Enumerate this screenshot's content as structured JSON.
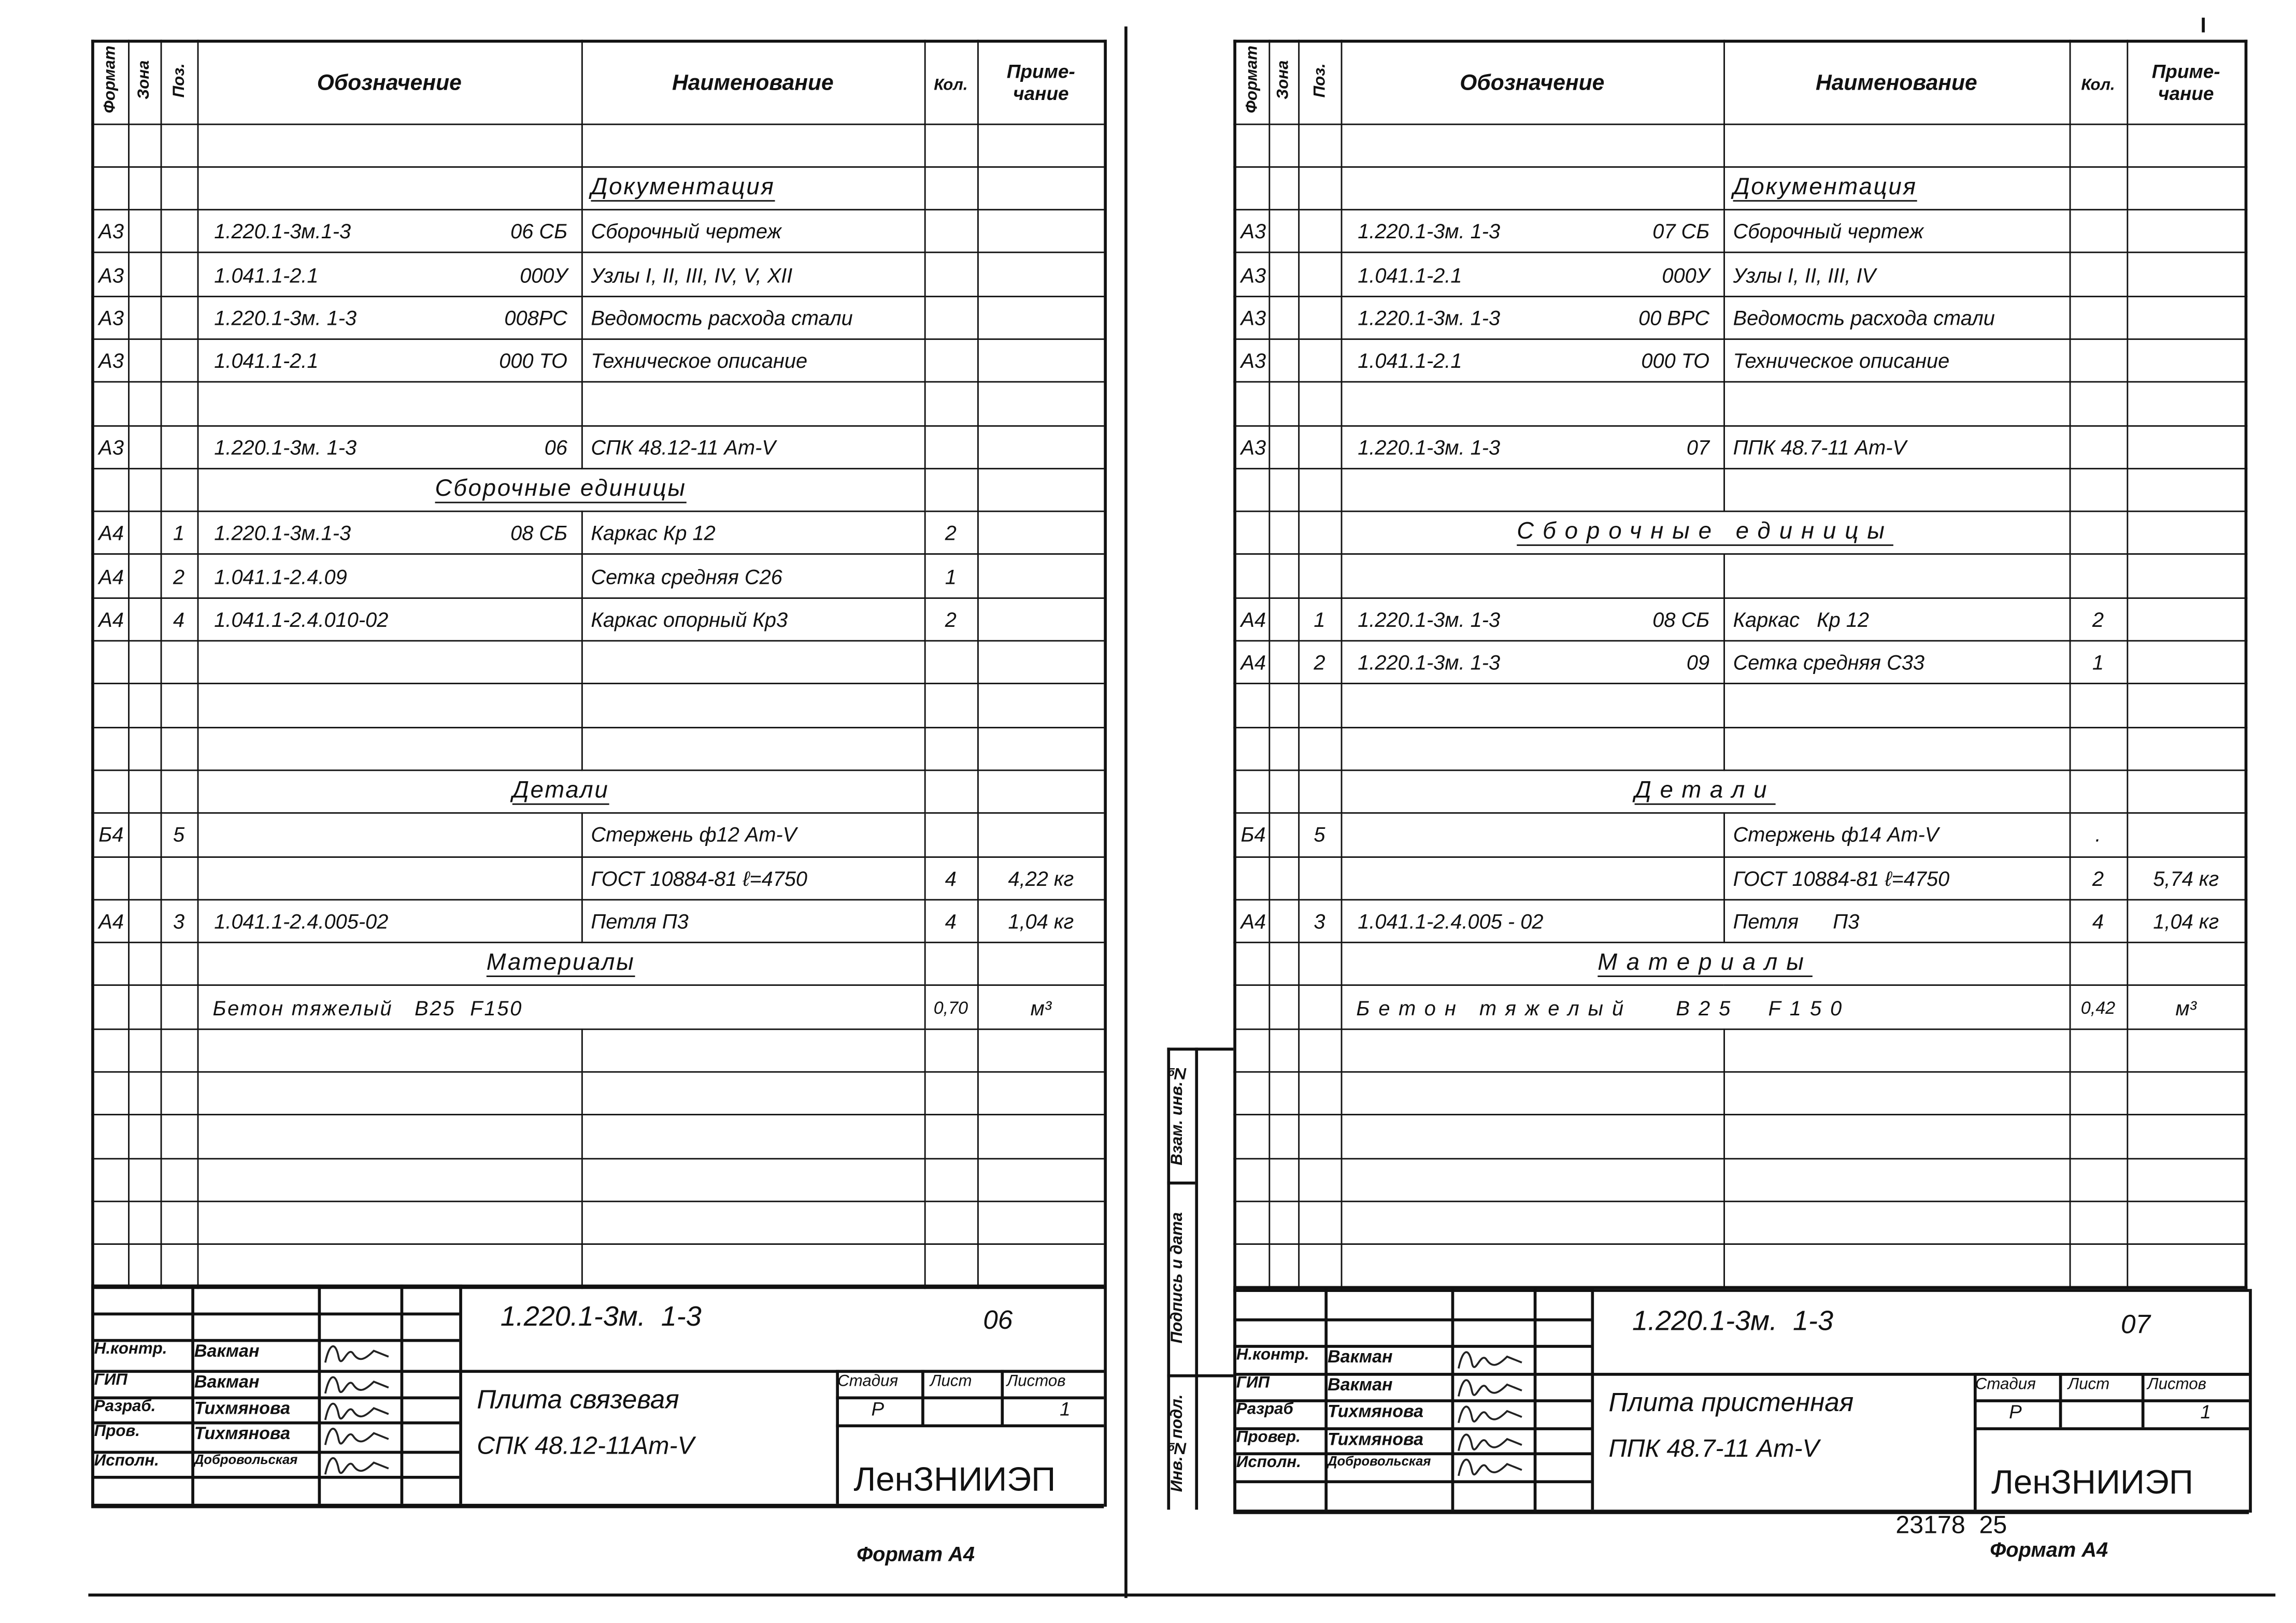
{
  "header": {
    "format": "Формат",
    "zone": "Зона",
    "pos": "Поз.",
    "designation": "Обозначение",
    "name": "Наименование",
    "qty": "Кол.",
    "note": "Приме-\nчание"
  },
  "sheets": [
    {
      "rows": [
        {
          "type": "empty"
        },
        {
          "type": "section_name",
          "name": "Документация"
        },
        {
          "type": "item",
          "format": "А3",
          "pos": "",
          "designation": "1.220.1-3м.1-3",
          "code": "06 СБ",
          "name": "Сборочный чертеж",
          "qty": "",
          "note": ""
        },
        {
          "type": "item",
          "format": "А3",
          "pos": "",
          "designation": "1.041.1-2.1",
          "code": "000У",
          "name": "Узлы I, II, III, IV, V, XII",
          "qty": "",
          "note": ""
        },
        {
          "type": "item",
          "format": "А3",
          "pos": "",
          "designation": "1.220.1-3м. 1-3",
          "code": "008РС",
          "name": "Ведомость расхода стали",
          "qty": "",
          "note": ""
        },
        {
          "type": "item",
          "format": "А3",
          "pos": "",
          "designation": "1.041.1-2.1",
          "code": "000 ТО",
          "name": "Техническое описание",
          "qty": "",
          "note": ""
        },
        {
          "type": "empty"
        },
        {
          "type": "item",
          "format": "А3",
          "pos": "",
          "designation": "1.220.1-3м. 1-3",
          "code": "06",
          "name": "СПК 48.12-11 Ат-V",
          "qty": "",
          "note": ""
        },
        {
          "type": "section",
          "name": "Сборочные единицы"
        },
        {
          "type": "item",
          "format": "А4",
          "pos": "1",
          "designation": "1.220.1-3м.1-3",
          "code": "08 СБ",
          "name": "Каркас Кр 12",
          "qty": "2",
          "note": ""
        },
        {
          "type": "item",
          "format": "А4",
          "pos": "2",
          "designation": "1.041.1-2.4.09",
          "code": "",
          "name": "Сетка средняя С26",
          "qty": "1",
          "note": ""
        },
        {
          "type": "item",
          "format": "А4",
          "pos": "4",
          "designation": "1.041.1-2.4.010-02",
          "code": "",
          "name": "Каркас опорный Кр3",
          "qty": "2",
          "note": ""
        },
        {
          "type": "empty"
        },
        {
          "type": "empty"
        },
        {
          "type": "empty"
        },
        {
          "type": "section",
          "name": "Детали"
        },
        {
          "type": "item",
          "format": "Б4",
          "pos": "5",
          "designation": "",
          "code": "",
          "name": "Стержень ф12 Ат-V",
          "qty": "",
          "note": ""
        },
        {
          "type": "item",
          "format": "",
          "pos": "",
          "designation": "",
          "code": "",
          "name": "ГОСТ 10884-81 ℓ=4750",
          "qty": "4",
          "note": "4,22 кг"
        },
        {
          "type": "item",
          "format": "А4",
          "pos": "3",
          "designation": "1.041.1-2.4.005-02",
          "code": "",
          "name": "Петля П3",
          "qty": "4",
          "note": "1,04 кг"
        },
        {
          "type": "section",
          "name": "Материалы"
        },
        {
          "type": "material",
          "name": "Бетон тяжелый   В25  F150",
          "qty": "0,70",
          "note": "м³"
        },
        {
          "type": "empty"
        },
        {
          "type": "empty"
        },
        {
          "type": "empty"
        },
        {
          "type": "empty"
        },
        {
          "type": "empty"
        },
        {
          "type": "empty"
        }
      ],
      "title_block": {
        "doc_number": "1.220.1-3м.  1-3",
        "doc_suffix": "06",
        "roles": [
          "Н.контр.",
          "ГИП",
          "Разраб.",
          "Пров.",
          "Исполн."
        ],
        "names": [
          "Вакман",
          "Вакман",
          "Тихмянова",
          "Тихмянова",
          "Добровольская"
        ],
        "title_line1": "Плита связевая",
        "title_line2": "СПК 48.12-11Ат-V",
        "stage_label": "Стадия",
        "sheet_label": "Лист",
        "sheets_label": "Листов",
        "stage": "Р",
        "sheet": "",
        "sheets_total": "1",
        "org": "ЛенЗНИИЭП"
      },
      "footer": "Формат А4"
    },
    {
      "rows": [
        {
          "type": "empty"
        },
        {
          "type": "section_name",
          "name": "Документация"
        },
        {
          "type": "item",
          "format": "А3",
          "pos": "",
          "designation": "1.220.1-3м. 1-3",
          "code": "07 СБ",
          "name": "Сборочный чертеж",
          "qty": "",
          "note": ""
        },
        {
          "type": "item",
          "format": "А3",
          "pos": "",
          "designation": "1.041.1-2.1",
          "code": "000У",
          "name": "Узлы I, II, III, IV",
          "qty": "",
          "note": ""
        },
        {
          "type": "item",
          "format": "А3",
          "pos": "",
          "designation": "1.220.1-3м. 1-3",
          "code": "00 ВРС",
          "name": "Ведомость расхода стали",
          "qty": "",
          "note": ""
        },
        {
          "type": "item",
          "format": "А3",
          "pos": "",
          "designation": "1.041.1-2.1",
          "code": "000 ТО",
          "name": "Техническое описание",
          "qty": "",
          "note": ""
        },
        {
          "type": "empty"
        },
        {
          "type": "item",
          "format": "А3",
          "pos": "",
          "designation": "1.220.1-3м. 1-3",
          "code": "07",
          "name": "ППК 48.7-11 Ат-V",
          "qty": "",
          "note": ""
        },
        {
          "type": "empty"
        },
        {
          "type": "section",
          "name": "Сборочные единицы",
          "wide": true
        },
        {
          "type": "empty"
        },
        {
          "type": "item",
          "format": "А4",
          "pos": "1",
          "designation": "1.220.1-3м. 1-3",
          "code": "08 СБ",
          "name": "Каркас   Кр 12",
          "qty": "2",
          "note": ""
        },
        {
          "type": "item",
          "format": "А4",
          "pos": "2",
          "designation": "1.220.1-3м. 1-3",
          "code": "09",
          "name": "Сетка средняя С33",
          "qty": "1",
          "note": ""
        },
        {
          "type": "empty"
        },
        {
          "type": "empty"
        },
        {
          "type": "section",
          "name": "Детали",
          "wide": true
        },
        {
          "type": "item",
          "format": "Б4",
          "pos": "5",
          "designation": "",
          "code": "",
          "name": "Стержень ф14 Ат-V",
          "qty": ".",
          "note": ""
        },
        {
          "type": "item",
          "format": "",
          "pos": "",
          "designation": "",
          "code": "",
          "name": "ГОСТ 10884-81 ℓ=4750",
          "qty": "2",
          "note": "5,74 кг"
        },
        {
          "type": "item",
          "format": "А4",
          "pos": "3",
          "designation": "1.041.1-2.4.005 - 02",
          "code": "",
          "name": "Петля      П3",
          "qty": "4",
          "note": "1,04 кг"
        },
        {
          "type": "section",
          "name": "Материалы",
          "wide": true
        },
        {
          "type": "material",
          "name": "Бетон тяжелый   В25  F150",
          "qty": "0,42",
          "note": "м³",
          "wide": true
        },
        {
          "type": "empty"
        },
        {
          "type": "empty"
        },
        {
          "type": "empty"
        },
        {
          "type": "empty"
        },
        {
          "type": "empty"
        },
        {
          "type": "empty"
        }
      ],
      "title_block": {
        "doc_number": "1.220.1-3м.  1-3",
        "doc_suffix": "07",
        "roles": [
          "Н.контр.",
          "ГИП",
          "Разраб",
          "Провер.",
          "Исполн."
        ],
        "names": [
          "Вакман",
          "Вакман",
          "Тихмянова",
          "Тихмянова",
          "Добровольская"
        ],
        "title_line1": "Плита пристенная",
        "title_line2": "ППК 48.7-11 Ат-V",
        "stage_label": "Стадия",
        "sheet_label": "Лист",
        "sheets_label": "Листов",
        "stage": "Р",
        "sheet": "",
        "sheets_total": "1",
        "org": "ЛенЗНИИЭП"
      },
      "side_strip": {
        "inv_orig": "Инв.№подл.",
        "sign_date": "Подпись и дата",
        "replace_inv": "Взам. инв.№"
      },
      "stamp_number": "23178  25",
      "footer": "Формат А4"
    }
  ]
}
